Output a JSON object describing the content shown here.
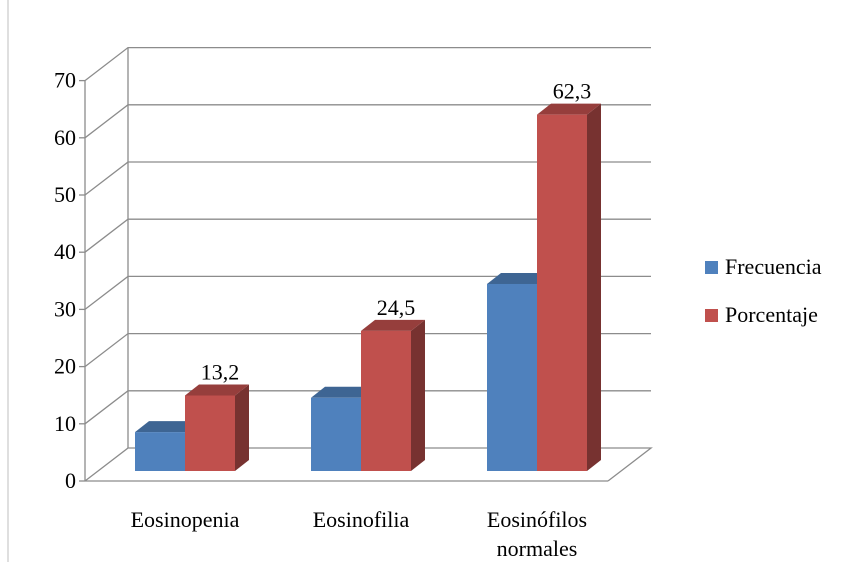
{
  "chart_data": {
    "type": "bar",
    "style": "3d-clustered-column",
    "categories": [
      "Eosinopenia",
      "Eosinofilia",
      "Eosinófilos normales"
    ],
    "category_lines": [
      [
        "Eosinopenia"
      ],
      [
        "Eosinofilia"
      ],
      [
        "Eosinófilos",
        "normales"
      ]
    ],
    "series": [
      {
        "name": "Frecuencia",
        "values": [
          6.8,
          12.8,
          32.7
        ],
        "color": "#4F81BD"
      },
      {
        "name": "Porcentaje",
        "values": [
          13.2,
          24.5,
          62.3
        ],
        "color": "#C0504D"
      }
    ],
    "data_labels": {
      "Porcentaje": [
        "13,2",
        "24,5",
        "62,3"
      ]
    },
    "y_ticks": [
      "0",
      "10",
      "20",
      "30",
      "40",
      "50",
      "60",
      "70"
    ],
    "ylim": [
      0,
      70
    ],
    "grid": true,
    "legend_position": "right"
  }
}
